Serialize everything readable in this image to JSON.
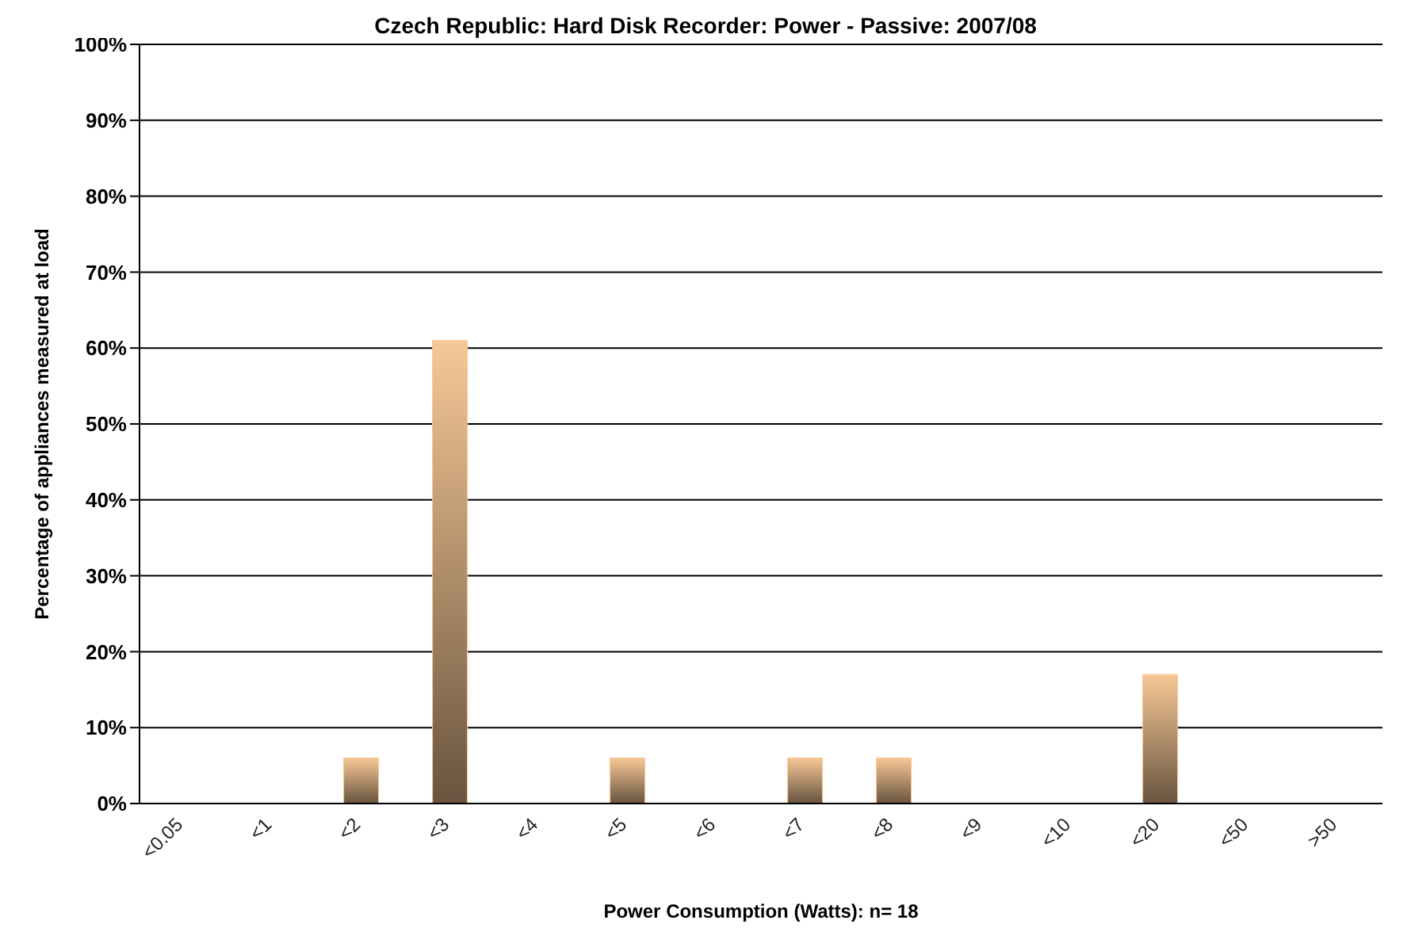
{
  "chart_data": {
    "type": "bar",
    "title": "Czech Republic: Hard Disk Recorder: Power - Passive: 2007/08",
    "xlabel": "Power Consumption (Watts):  n= 18",
    "ylabel": "Percentage of appliances measured at load",
    "categories": [
      "<0.05",
      "<1",
      "<2",
      "<3",
      "<4",
      "<5",
      "<6",
      "<7",
      "<8",
      "<9",
      "<10",
      "<20",
      "<50",
      ">50"
    ],
    "values": [
      0,
      0,
      6,
      61,
      0,
      6,
      0,
      6,
      6,
      0,
      0,
      17,
      0,
      0
    ],
    "color": "#f7c896",
    "ylim": [
      0,
      100
    ],
    "yticks": [
      {
        "value": 0,
        "label": "0%"
      },
      {
        "value": 10,
        "label": "10%"
      },
      {
        "value": 20,
        "label": "20%"
      },
      {
        "value": 30,
        "label": "30%"
      },
      {
        "value": 40,
        "label": "40%"
      },
      {
        "value": 50,
        "label": "50%"
      },
      {
        "value": 60,
        "label": "60%"
      },
      {
        "value": 70,
        "label": "70%"
      },
      {
        "value": 80,
        "label": "80%"
      },
      {
        "value": 90,
        "label": "90%"
      },
      {
        "value": 100,
        "label": "100%"
      }
    ],
    "grid": "y",
    "legend": false
  }
}
